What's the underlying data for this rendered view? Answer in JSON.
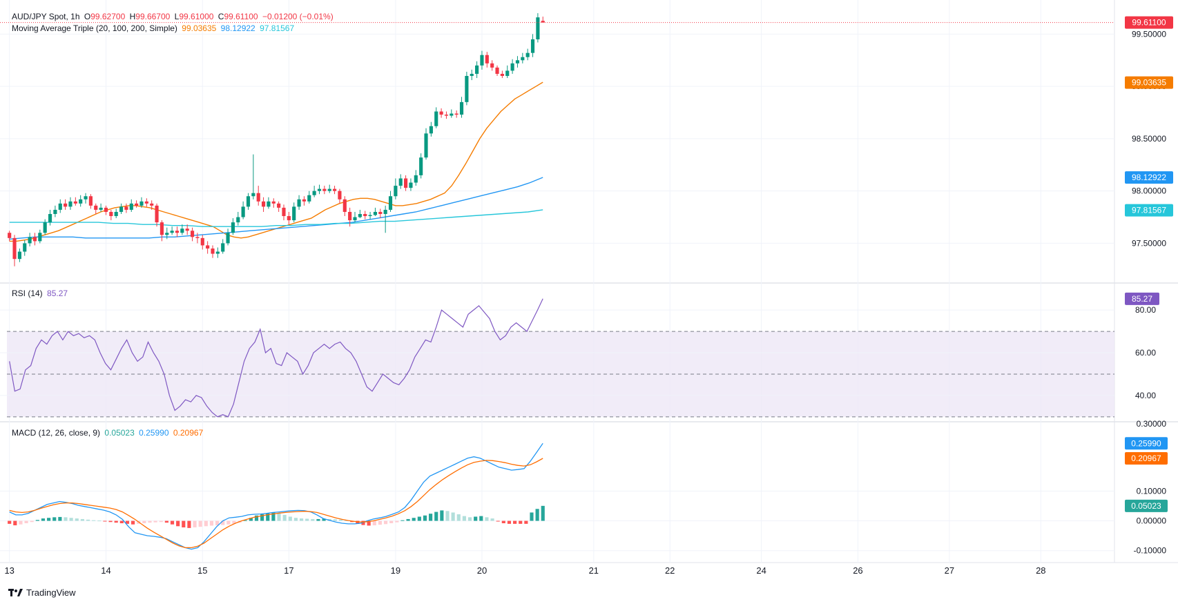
{
  "header": {
    "symbol": "AUD/JPY Spot, 1h",
    "o_label": "O",
    "o_value": "99.62700",
    "h_label": "H",
    "h_value": "99.66700",
    "l_label": "L",
    "l_value": "99.61000",
    "c_label": "C",
    "c_value": "99.61100",
    "change": "−0.01200 (−0.01%)"
  },
  "ma_legend": {
    "label": "Moving Average Triple (20, 100, 200, Simple)",
    "ma20": "99.03635",
    "ma100": "98.12922",
    "ma200": "97.81567"
  },
  "rsi_legend": {
    "label": "RSI (14)",
    "value": "85.27"
  },
  "macd_legend": {
    "label": "MACD (12, 26, close, 9)",
    "hist": "0.05023",
    "macd": "0.25990",
    "signal": "0.20967"
  },
  "footer": {
    "brand": "TradingView"
  },
  "colors": {
    "up": "#089981",
    "down": "#f23645",
    "ma20": "#f57c00",
    "ma100": "#2196f3",
    "ma200": "#26c6da",
    "rsi": "#7e57c2",
    "rsi_band": "#ede7f6",
    "macd": "#2196f3",
    "signal": "#ff6d00",
    "hist_up_strong": "#26a69a",
    "hist_up_weak": "#b2dfdb",
    "hist_down_strong": "#ff5252",
    "hist_down_weak": "#ffcdd2",
    "grid": "#f0f3fa",
    "text": "#131722"
  },
  "chart_data": [
    {
      "type": "candlestick",
      "pane": "price",
      "ylim": [
        97.12,
        99.76
      ],
      "y_ticks": [
        "99.50000",
        "99.00000",
        "98.50000",
        "98.00000",
        "97.50000"
      ],
      "y_tick_values": [
        99.5,
        99.0,
        98.5,
        98.0,
        97.5
      ],
      "x_ticks": [
        "13",
        "14",
        "15",
        "17",
        "19",
        "20",
        "21",
        "22",
        "24",
        "26",
        "27",
        "28"
      ],
      "x_tick_bars": [
        0,
        19,
        38,
        55,
        76,
        93,
        115,
        130,
        148,
        167,
        185,
        203
      ],
      "x_total_bars": 218,
      "last_price_label": "99.61100",
      "last_price": 99.611,
      "closes": [
        97.55,
        97.35,
        97.42,
        97.5,
        97.56,
        97.52,
        97.6,
        97.7,
        97.78,
        97.82,
        97.88,
        97.85,
        97.9,
        97.88,
        97.92,
        97.95,
        97.86,
        97.82,
        97.84,
        97.8,
        97.76,
        97.8,
        97.85,
        97.82,
        97.88,
        97.86,
        97.9,
        97.88,
        97.86,
        97.7,
        97.58,
        97.6,
        97.62,
        97.6,
        97.64,
        97.62,
        97.56,
        97.55,
        97.48,
        97.45,
        97.4,
        97.42,
        97.5,
        97.6,
        97.7,
        97.75,
        97.85,
        97.95,
        97.98,
        97.9,
        97.85,
        97.9,
        97.88,
        97.84,
        97.76,
        97.72,
        97.85,
        97.92,
        97.9,
        97.96,
        98.0,
        98.02,
        98.0,
        98.02,
        98.0,
        97.92,
        97.8,
        97.72,
        97.75,
        97.78,
        97.76,
        97.77,
        97.8,
        97.78,
        97.82,
        97.95,
        98.05,
        98.12,
        98.03,
        98.08,
        98.15,
        98.32,
        98.55,
        98.62,
        98.76,
        98.73,
        98.72,
        98.74,
        98.73,
        98.85,
        99.1,
        99.12,
        99.2,
        99.3,
        99.22,
        99.18,
        99.12,
        99.1,
        99.15,
        99.22,
        99.25,
        99.28,
        99.32,
        99.45,
        99.66,
        99.611
      ],
      "opens": [
        97.6,
        97.55,
        97.35,
        97.42,
        97.5,
        97.56,
        97.52,
        97.6,
        97.7,
        97.78,
        97.82,
        97.88,
        97.85,
        97.9,
        97.88,
        97.92,
        97.95,
        97.86,
        97.82,
        97.84,
        97.8,
        97.76,
        97.8,
        97.85,
        97.82,
        97.88,
        97.86,
        97.9,
        97.88,
        97.86,
        97.7,
        97.58,
        97.6,
        97.62,
        97.6,
        97.64,
        97.62,
        97.56,
        97.55,
        97.48,
        97.45,
        97.4,
        97.42,
        97.5,
        97.6,
        97.7,
        97.75,
        97.85,
        97.95,
        97.98,
        97.9,
        97.85,
        97.9,
        97.88,
        97.84,
        97.76,
        97.72,
        97.85,
        97.92,
        97.9,
        97.96,
        98.0,
        98.02,
        98.0,
        98.02,
        98.0,
        97.92,
        97.8,
        97.72,
        97.75,
        97.78,
        97.76,
        97.77,
        97.8,
        97.78,
        97.82,
        97.95,
        98.05,
        98.12,
        98.03,
        98.08,
        98.15,
        98.32,
        98.55,
        98.62,
        98.76,
        98.73,
        98.72,
        98.74,
        98.73,
        98.85,
        99.1,
        99.12,
        99.2,
        99.3,
        99.22,
        99.18,
        99.12,
        99.1,
        99.15,
        99.22,
        99.25,
        99.28,
        99.32,
        99.45,
        99.627
      ],
      "highs": [
        97.62,
        97.58,
        97.45,
        97.53,
        97.6,
        97.6,
        97.63,
        97.73,
        97.82,
        97.86,
        97.92,
        97.92,
        97.94,
        97.94,
        97.96,
        97.98,
        97.97,
        97.88,
        97.88,
        97.86,
        97.82,
        97.83,
        97.88,
        97.88,
        97.92,
        97.91,
        97.94,
        97.93,
        97.91,
        97.88,
        97.72,
        97.65,
        97.66,
        97.66,
        97.68,
        97.68,
        97.65,
        97.6,
        97.58,
        97.52,
        97.48,
        97.46,
        97.54,
        97.64,
        97.74,
        97.8,
        97.9,
        97.98,
        98.35,
        98.05,
        97.94,
        97.94,
        97.93,
        97.9,
        97.87,
        97.8,
        97.89,
        97.96,
        97.95,
        98.0,
        98.05,
        98.06,
        98.05,
        98.06,
        98.05,
        98.02,
        97.95,
        97.84,
        97.8,
        97.82,
        97.81,
        97.8,
        97.84,
        97.83,
        97.86,
        98.0,
        98.12,
        98.16,
        98.15,
        98.12,
        98.2,
        98.36,
        98.6,
        98.66,
        98.8,
        98.79,
        98.76,
        98.78,
        98.77,
        98.9,
        99.14,
        99.16,
        99.24,
        99.34,
        99.33,
        99.25,
        99.2,
        99.15,
        99.2,
        99.26,
        99.29,
        99.32,
        99.36,
        99.5,
        99.7,
        99.667
      ],
      "lows": [
        97.52,
        97.28,
        97.32,
        97.38,
        97.47,
        97.48,
        97.5,
        97.58,
        97.67,
        97.75,
        97.79,
        97.82,
        97.82,
        97.86,
        97.85,
        97.88,
        97.83,
        97.78,
        97.8,
        97.77,
        97.72,
        97.74,
        97.78,
        97.79,
        97.8,
        97.84,
        97.84,
        97.85,
        97.82,
        97.66,
        97.52,
        97.54,
        97.58,
        97.56,
        97.58,
        97.58,
        97.52,
        97.5,
        97.44,
        97.4,
        97.36,
        97.36,
        97.4,
        97.48,
        97.58,
        97.67,
        97.73,
        97.82,
        97.92,
        97.86,
        97.8,
        97.83,
        97.84,
        97.8,
        97.72,
        97.68,
        97.7,
        97.82,
        97.86,
        97.88,
        97.94,
        97.97,
        97.97,
        97.98,
        97.97,
        97.88,
        97.76,
        97.66,
        97.7,
        97.74,
        97.73,
        97.73,
        97.76,
        97.74,
        97.6,
        97.8,
        97.92,
        98.02,
        98.0,
        98.0,
        98.05,
        98.12,
        98.3,
        98.52,
        98.6,
        98.7,
        98.69,
        98.7,
        98.7,
        98.7,
        98.82,
        99.06,
        99.08,
        99.16,
        99.18,
        99.15,
        99.1,
        99.08,
        99.08,
        99.12,
        99.18,
        99.22,
        99.25,
        99.28,
        99.42,
        99.61
      ],
      "series": [
        {
          "name": "MA 20",
          "values": [
            97.52,
            97.52,
            97.53,
            97.54,
            97.56,
            97.58,
            97.6,
            97.62,
            97.65,
            97.68,
            97.71,
            97.74,
            97.77,
            97.8,
            97.82,
            97.84,
            97.85,
            97.86,
            97.86,
            97.85,
            97.84,
            97.82,
            97.8,
            97.78,
            97.76,
            97.74,
            97.72,
            97.7,
            97.68,
            97.66,
            97.62,
            97.58,
            97.56,
            97.55,
            97.56,
            97.58,
            97.6,
            97.62,
            97.64,
            97.66,
            97.68,
            97.7,
            97.72,
            97.74,
            97.78,
            97.82,
            97.85,
            97.88,
            97.9,
            97.92,
            97.93,
            97.93,
            97.92,
            97.9,
            97.88,
            97.86,
            97.86,
            97.87,
            97.88,
            97.9,
            97.92,
            97.95,
            97.98,
            98.05,
            98.15,
            98.26,
            98.38,
            98.5,
            98.6,
            98.68,
            98.76,
            98.82,
            98.88,
            98.92,
            98.96,
            99.0,
            99.04
          ]
        },
        {
          "name": "MA 100",
          "values": [
            97.54,
            97.55,
            97.56,
            97.56,
            97.56,
            97.56,
            97.55,
            97.55,
            97.55,
            97.55,
            97.55,
            97.55,
            97.56,
            97.56,
            97.57,
            97.58,
            97.59,
            97.6,
            97.61,
            97.62,
            97.63,
            97.64,
            97.65,
            97.66,
            97.67,
            97.68,
            97.69,
            97.7,
            97.72,
            97.74,
            97.76,
            97.78,
            97.8,
            97.83,
            97.86,
            97.89,
            97.92,
            97.95,
            97.98,
            98.01,
            98.04,
            98.08,
            98.13
          ]
        },
        {
          "name": "MA 200",
          "values": [
            97.7,
            97.7,
            97.7,
            97.7,
            97.7,
            97.7,
            97.7,
            97.69,
            97.69,
            97.68,
            97.68,
            97.67,
            97.67,
            97.66,
            97.66,
            97.66,
            97.66,
            97.66,
            97.67,
            97.67,
            97.68,
            97.68,
            97.69,
            97.69,
            97.7,
            97.71,
            97.71,
            97.72,
            97.73,
            97.74,
            97.75,
            97.76,
            97.77,
            97.78,
            97.79,
            97.8,
            97.82
          ]
        }
      ]
    },
    {
      "type": "line",
      "pane": "rsi",
      "ylim": [
        28,
        92
      ],
      "y_ticks": [
        "80.00",
        "60.00",
        "40.00"
      ],
      "y_tick_values": [
        80,
        60,
        40
      ],
      "band": [
        30,
        70
      ],
      "mid_line": 50,
      "last_value_label": "85.27",
      "series": [
        {
          "name": "RSI (14)",
          "values": [
            56,
            42,
            43,
            52,
            54,
            62,
            66,
            64,
            68,
            70,
            66,
            70,
            68,
            69,
            67,
            68,
            66,
            60,
            55,
            52,
            57,
            62,
            66,
            60,
            56,
            58,
            65,
            60,
            56,
            50,
            40,
            33,
            35,
            38,
            37,
            40,
            39,
            35,
            32,
            30,
            31,
            30,
            36,
            46,
            56,
            62,
            65,
            71,
            60,
            62,
            55,
            54,
            60,
            58,
            56,
            50,
            54,
            60,
            62,
            64,
            62,
            64,
            65,
            62,
            60,
            56,
            50,
            44,
            42,
            46,
            50,
            48,
            46,
            45,
            48,
            52,
            58,
            62,
            66,
            65,
            72,
            80,
            78,
            76,
            74,
            72,
            78,
            80,
            82,
            79,
            76,
            70,
            66,
            68,
            72,
            74,
            72,
            70,
            75,
            80,
            85.27
          ]
        }
      ]
    },
    {
      "type": "bar+line",
      "pane": "macd",
      "ylim": [
        -0.14,
        0.33
      ],
      "y_ticks": [
        "0.10000",
        "0.00000",
        "-0.10000"
      ],
      "y_tick_values": [
        0.1,
        0.0,
        -0.1
      ],
      "cut_tick_label": "0.30000",
      "labels_right": {
        "macd": "0.25990",
        "signal": "0.20967",
        "hist": "0.05023"
      },
      "histogram": [
        -0.01,
        -0.015,
        -0.012,
        -0.008,
        -0.004,
        0.003,
        0.008,
        0.01,
        0.012,
        0.013,
        0.012,
        0.01,
        0.008,
        0.006,
        0.004,
        0.002,
        0.001,
        -0.002,
        -0.004,
        -0.006,
        -0.008,
        -0.01,
        -0.012,
        -0.01,
        -0.008,
        -0.006,
        -0.005,
        -0.004,
        -0.006,
        -0.012,
        -0.018,
        -0.022,
        -0.024,
        -0.022,
        -0.02,
        -0.018,
        -0.016,
        -0.015,
        -0.014,
        -0.012,
        -0.01,
        -0.006,
        0.002,
        0.01,
        0.018,
        0.022,
        0.025,
        0.028,
        0.026,
        0.02,
        0.014,
        0.01,
        0.008,
        0.007,
        0.006,
        0.006,
        0.007,
        0.006,
        0.005,
        0.004,
        0.002,
        -0.004,
        -0.01,
        -0.014,
        -0.016,
        -0.015,
        -0.013,
        -0.011,
        -0.008,
        -0.005,
        0.002,
        0.006,
        0.01,
        0.014,
        0.018,
        0.024,
        0.03,
        0.035,
        0.033,
        0.028,
        0.022,
        0.016,
        0.012,
        0.014,
        0.016,
        0.012,
        0.008,
        -0.002,
        -0.008,
        -0.01,
        -0.01,
        -0.01,
        -0.01,
        0.028,
        0.04,
        0.05023
      ],
      "series": [
        {
          "name": "MACD",
          "values": [
            0.03,
            0.02,
            0.02,
            0.025,
            0.035,
            0.045,
            0.055,
            0.06,
            0.065,
            0.062,
            0.058,
            0.052,
            0.048,
            0.044,
            0.04,
            0.036,
            0.03,
            0.02,
            0.005,
            -0.02,
            -0.04,
            -0.045,
            -0.05,
            -0.052,
            -0.055,
            -0.06,
            -0.07,
            -0.08,
            -0.09,
            -0.095,
            -0.09,
            -0.07,
            -0.045,
            -0.02,
            0.0,
            0.01,
            0.012,
            0.015,
            0.02,
            0.022,
            0.023,
            0.025,
            0.028,
            0.03,
            0.032,
            0.034,
            0.035,
            0.034,
            0.03,
            0.02,
            0.008,
            0.002,
            -0.004,
            -0.008,
            -0.01,
            -0.01,
            -0.008,
            0.0,
            0.006,
            0.01,
            0.015,
            0.022,
            0.03,
            0.045,
            0.07,
            0.1,
            0.13,
            0.15,
            0.16,
            0.17,
            0.18,
            0.19,
            0.2,
            0.21,
            0.215,
            0.21,
            0.2,
            0.19,
            0.18,
            0.175,
            0.17,
            0.172,
            0.175,
            0.2,
            0.23,
            0.2599
          ]
        },
        {
          "name": "Signal",
          "values": [
            0.035,
            0.03,
            0.028,
            0.03,
            0.035,
            0.042,
            0.048,
            0.054,
            0.058,
            0.06,
            0.06,
            0.058,
            0.055,
            0.052,
            0.049,
            0.046,
            0.043,
            0.038,
            0.03,
            0.018,
            0.005,
            -0.01,
            -0.025,
            -0.038,
            -0.05,
            -0.062,
            -0.074,
            -0.084,
            -0.09,
            -0.09,
            -0.085,
            -0.075,
            -0.06,
            -0.045,
            -0.03,
            -0.018,
            -0.008,
            0.0,
            0.006,
            0.012,
            0.016,
            0.02,
            0.023,
            0.026,
            0.028,
            0.03,
            0.031,
            0.032,
            0.031,
            0.028,
            0.022,
            0.016,
            0.01,
            0.005,
            0.001,
            -0.002,
            -0.004,
            -0.003,
            0.0,
            0.005,
            0.01,
            0.016,
            0.024,
            0.034,
            0.048,
            0.065,
            0.085,
            0.105,
            0.122,
            0.138,
            0.152,
            0.165,
            0.177,
            0.188,
            0.196,
            0.2,
            0.203,
            0.202,
            0.199,
            0.195,
            0.19,
            0.186,
            0.184,
            0.188,
            0.198,
            0.20967
          ]
        }
      ]
    }
  ]
}
